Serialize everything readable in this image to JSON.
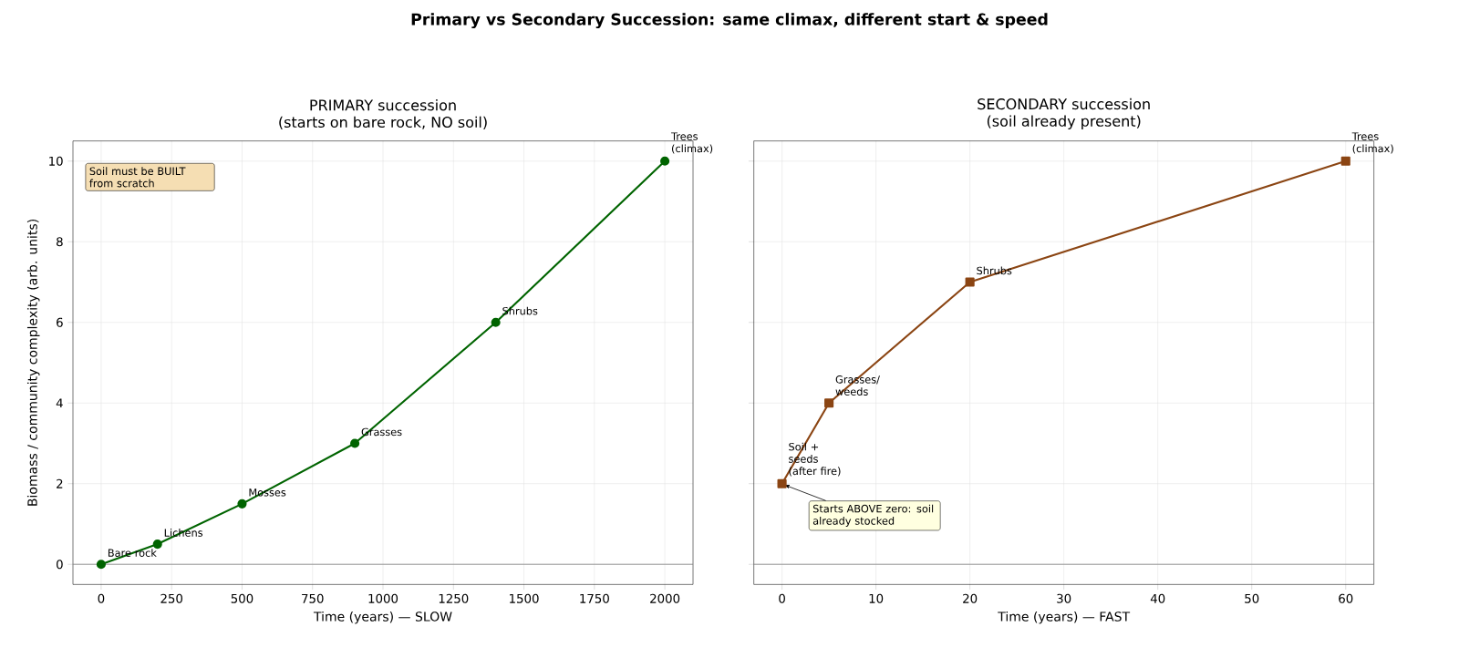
{
  "chart_data": [
    {
      "type": "other",
      "title": "Primary vs Secondary Succession: same climax, different start & speed"
    },
    {
      "type": "line",
      "title": "PRIMARY succession",
      "subtitle": "(starts on bare rock, NO soil)",
      "xlabel": "Time (years) — SLOW",
      "ylabel": "Biomass / community complexity (arb. units)",
      "x": [
        0,
        200,
        500,
        900,
        1400,
        2000
      ],
      "series": [
        {
          "color": "#006400",
          "values": [
            0,
            0.5,
            1.5,
            3,
            6,
            10
          ]
        }
      ],
      "marker": "circle",
      "grid": true,
      "xlim": [
        -100,
        2100
      ],
      "xticks": [
        0,
        250,
        500,
        750,
        1000,
        1250,
        1500,
        1750,
        2000
      ],
      "ylim": [
        -0.5,
        10.5
      ],
      "yticks": [
        0,
        2,
        4,
        6,
        8,
        10
      ],
      "ref_lines": [
        {
          "axis": "y",
          "value": 0,
          "color": "#808080"
        }
      ],
      "annotations": [
        "Soil must be BUILT from scratch",
        {
          "text": "Bare rock",
          "x": 0,
          "y": 0
        },
        {
          "text": "Lichens",
          "x": 200,
          "y": 0.5
        },
        {
          "text": "Mosses",
          "x": 500,
          "y": 1.5
        },
        {
          "text": "Grasses",
          "x": 900,
          "y": 3
        },
        {
          "text": "Shrubs",
          "x": 1400,
          "y": 6
        },
        {
          "text": "Trees (climax)",
          "x": 2000,
          "y": 10
        }
      ]
    },
    {
      "type": "line",
      "title": "SECONDARY succession",
      "subtitle": "(soil already present)",
      "xlabel": "Time (years) — FAST",
      "x": [
        0,
        5,
        20,
        60
      ],
      "series": [
        {
          "color": "#8b4513",
          "values": [
            2,
            4,
            7,
            10
          ]
        }
      ],
      "marker": "square",
      "grid": true,
      "tick_labels": "x",
      "xlim": [
        -3,
        63
      ],
      "xticks": [
        0,
        10,
        20,
        30,
        40,
        50,
        60
      ],
      "ylim": [
        -0.5,
        10.5
      ],
      "yticks": [
        0,
        2,
        4,
        6,
        8,
        10
      ],
      "ref_lines": [
        {
          "axis": "y",
          "value": 0,
          "color": "#808080"
        }
      ],
      "annotations": [
        {
          "text": "Soil + seeds (after fire)",
          "x": 0,
          "y": 2
        },
        {
          "text": "Grasses/ weeds",
          "x": 5,
          "y": 4
        },
        {
          "text": "Shrubs",
          "x": 20,
          "y": 7
        },
        {
          "text": "Trees (climax)",
          "x": 60,
          "y": 10
        },
        {
          "text": "Starts ABOVE zero: soil already stocked",
          "x": 0,
          "y": 2
        }
      ]
    }
  ]
}
